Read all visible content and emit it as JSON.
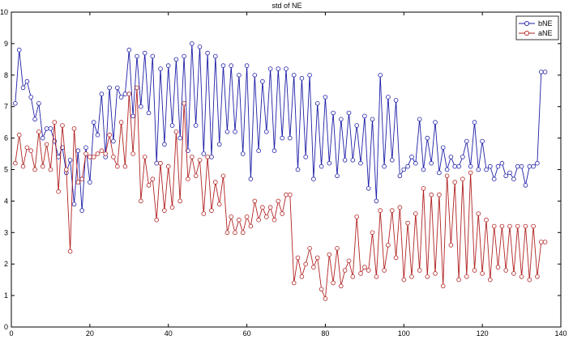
{
  "chart_data": {
    "type": "line",
    "title": "std of NE",
    "xlabel": "",
    "ylabel": "",
    "xlim": [
      0,
      140
    ],
    "ylim": [
      0,
      10
    ],
    "xticks": [
      0,
      20,
      40,
      60,
      80,
      100,
      120,
      140
    ],
    "yticks": [
      0,
      1,
      2,
      3,
      4,
      5,
      6,
      7,
      8,
      9,
      10
    ],
    "grid": false,
    "legend_position": "top-right",
    "marker": "circle",
    "series": [
      {
        "name": "bNE",
        "color": "#1f1fa8",
        "x": [
          1,
          2,
          3,
          4,
          5,
          6,
          7,
          8,
          9,
          10,
          11,
          12,
          13,
          14,
          15,
          16,
          17,
          18,
          19,
          20,
          21,
          22,
          23,
          24,
          25,
          26,
          27,
          28,
          29,
          30,
          31,
          32,
          33,
          34,
          35,
          36,
          37,
          38,
          39,
          40,
          41,
          42,
          43,
          44,
          45,
          46,
          47,
          48,
          49,
          50,
          51,
          52,
          53,
          54,
          55,
          56,
          57,
          58,
          59,
          60,
          61,
          62,
          63,
          64,
          65,
          66,
          67,
          68,
          69,
          70,
          71,
          72,
          73,
          74,
          75,
          76,
          77,
          78,
          79,
          80,
          81,
          82,
          83,
          84,
          85,
          86,
          87,
          88,
          89,
          90,
          91,
          92,
          93,
          94,
          95,
          96,
          97,
          98,
          99,
          100,
          101,
          102,
          103,
          104,
          105,
          106,
          107,
          108,
          109,
          110,
          111,
          112,
          113,
          114,
          115,
          116,
          117,
          118,
          119,
          120,
          121,
          122,
          123,
          124,
          125,
          126,
          127,
          128,
          129,
          130,
          131,
          132,
          133,
          134,
          135,
          136
        ],
        "values": [
          7.1,
          8.8,
          7.6,
          7.8,
          7.3,
          6.6,
          7.1,
          6.0,
          6.3,
          6.3,
          5.9,
          5.4,
          5.7,
          4.9,
          5.3,
          3.9,
          5.6,
          3.7,
          5.7,
          4.6,
          6.5,
          6.1,
          7.4,
          5.4,
          7.6,
          5.9,
          7.6,
          7.3,
          7.4,
          8.8,
          6.7,
          8.6,
          7.0,
          8.7,
          6.8,
          8.6,
          5.2,
          8.2,
          5.8,
          8.3,
          6.4,
          8.5,
          6.0,
          8.6,
          5.6,
          9.0,
          6.4,
          8.9,
          5.5,
          8.7,
          5.4,
          8.6,
          5.8,
          8.3,
          6.2,
          8.3,
          6.2,
          8.0,
          5.5,
          8.3,
          4.7,
          8.0,
          5.6,
          7.8,
          6.2,
          8.2,
          5.6,
          8.2,
          6.0,
          8.2,
          6.0,
          8.0,
          5.0,
          7.9,
          5.4,
          8.0,
          4.7,
          7.1,
          5.1,
          7.3,
          5.2,
          6.8,
          4.8,
          6.6,
          5.3,
          6.8,
          5.3,
          6.4,
          5.2,
          6.7,
          4.4,
          6.6,
          4.0,
          8.0,
          5.1,
          7.3,
          5.3,
          7.2,
          4.8,
          5.0,
          5.1,
          5.4,
          5.2,
          6.6,
          5.0,
          6.0,
          5.2,
          6.5,
          4.9,
          5.7,
          5.0,
          5.4,
          5.1,
          5.1,
          5.4,
          5.9,
          5.1,
          6.5,
          5.0,
          5.9,
          5.0,
          5.1,
          4.7,
          5.1,
          5.2,
          4.8,
          4.9,
          4.7,
          5.1,
          5.1,
          4.5,
          5.1,
          5.1,
          5.2,
          8.1,
          8.1
        ]
      },
      {
        "name": "aNE",
        "color": "#b22222",
        "x": [
          1,
          2,
          3,
          4,
          5,
          6,
          7,
          8,
          9,
          10,
          11,
          12,
          13,
          14,
          15,
          16,
          17,
          18,
          19,
          20,
          21,
          22,
          23,
          24,
          25,
          26,
          27,
          28,
          29,
          30,
          31,
          32,
          33,
          34,
          35,
          36,
          37,
          38,
          39,
          40,
          41,
          42,
          43,
          44,
          45,
          46,
          47,
          48,
          49,
          50,
          51,
          52,
          53,
          54,
          55,
          56,
          57,
          58,
          59,
          60,
          61,
          62,
          63,
          64,
          65,
          66,
          67,
          68,
          69,
          70,
          71,
          72,
          73,
          74,
          75,
          76,
          77,
          78,
          79,
          80,
          81,
          82,
          83,
          84,
          85,
          86,
          87,
          88,
          89,
          90,
          91,
          92,
          93,
          94,
          95,
          96,
          97,
          98,
          99,
          100,
          101,
          102,
          103,
          104,
          105,
          106,
          107,
          108,
          109,
          110,
          111,
          112,
          113,
          114,
          115,
          116,
          117,
          118,
          119,
          120,
          121,
          122,
          123,
          124,
          125,
          126,
          127,
          128,
          129,
          130,
          131,
          132,
          133,
          134,
          135,
          136
        ],
        "values": [
          5.2,
          6.1,
          5.1,
          5.7,
          5.6,
          5.0,
          6.2,
          5.1,
          5.8,
          5.0,
          6.5,
          4.3,
          6.4,
          5.0,
          2.4,
          6.3,
          4.6,
          4.7,
          5.5,
          5.4,
          5.4,
          5.5,
          5.6,
          5.5,
          6.1,
          5.4,
          5.1,
          6.5,
          5.1,
          7.4,
          5.5,
          7.6,
          4.0,
          5.4,
          4.5,
          4.7,
          3.4,
          5.2,
          3.7,
          5.1,
          3.8,
          6.2,
          4.0,
          7.1,
          4.7,
          5.4,
          4.8,
          5.3,
          3.6,
          5.4,
          3.7,
          4.6,
          3.9,
          4.8,
          3.0,
          3.5,
          3.0,
          3.4,
          3.0,
          3.5,
          3.2,
          4.0,
          3.4,
          3.8,
          3.5,
          3.8,
          3.4,
          4.0,
          3.6,
          4.2,
          4.2,
          1.4,
          2.2,
          1.6,
          2.0,
          2.5,
          1.9,
          2.2,
          1.2,
          0.9,
          2.3,
          1.4,
          2.5,
          1.3,
          1.8,
          2.1,
          1.6,
          3.5,
          1.7,
          1.9,
          1.8,
          3.0,
          1.6,
          3.7,
          1.8,
          2.6,
          3.7,
          2.2,
          3.8,
          1.5,
          3.3,
          1.6,
          3.6,
          1.8,
          4.4,
          1.6,
          4.2,
          1.7,
          4.2,
          1.3,
          4.8,
          2.6,
          4.6,
          1.5,
          4.7,
          1.6,
          4.9,
          1.8,
          3.6,
          1.7,
          3.4,
          1.5,
          3.2,
          1.9,
          3.2,
          1.8,
          3.2,
          1.7,
          3.2,
          1.6,
          3.2,
          1.5,
          3.2,
          1.6,
          2.7,
          2.7
        ]
      }
    ]
  }
}
